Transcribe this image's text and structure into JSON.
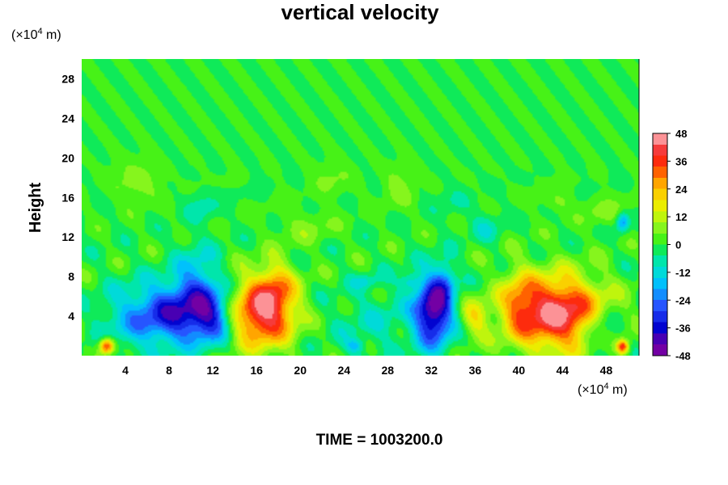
{
  "chart_data": {
    "type": "heatmap",
    "title": "vertical velocity",
    "ylabel": "Height",
    "xlabel": "",
    "x_unit": {
      "prefix": "(×10",
      "exp": "4",
      "suffix": " m)"
    },
    "y_unit": {
      "prefix": "(×10",
      "exp": "4",
      "suffix": " m)"
    },
    "xlim": [
      0,
      51
    ],
    "ylim": [
      0,
      30
    ],
    "xticks": [
      4,
      8,
      12,
      16,
      20,
      24,
      28,
      32,
      36,
      40,
      44,
      48
    ],
    "yticks": [
      4,
      8,
      12,
      16,
      20,
      24,
      28
    ],
    "colorbar": {
      "ticks": [
        48,
        36,
        24,
        12,
        0,
        -12,
        -24,
        -36,
        -48
      ],
      "range": [
        -48,
        48
      ],
      "levels": 20
    },
    "features": [
      {
        "x": 8.5,
        "y": 4.2,
        "sx": 2.6,
        "sy": 2.1,
        "amp": -34
      },
      {
        "x": 12.0,
        "y": 4.0,
        "sx": 1.3,
        "sy": 1.9,
        "amp": -24
      },
      {
        "x": 10.5,
        "y": 7.5,
        "sx": 1.4,
        "sy": 2.5,
        "amp": -16
      },
      {
        "x": 16.5,
        "y": 4.3,
        "sx": 2.1,
        "sy": 2.4,
        "amp": 44
      },
      {
        "x": 17.8,
        "y": 7.2,
        "sx": 1.2,
        "sy": 1.8,
        "amp": 16
      },
      {
        "x": 32.2,
        "y": 4.5,
        "sx": 1.2,
        "sy": 2.4,
        "amp": -46
      },
      {
        "x": 33.2,
        "y": 7.5,
        "sx": 0.7,
        "sy": 1.5,
        "amp": -14
      },
      {
        "x": 43.5,
        "y": 4.3,
        "sx": 3.0,
        "sy": 2.6,
        "amp": 46
      },
      {
        "x": 40.0,
        "y": 5.5,
        "sx": 1.1,
        "sy": 2.4,
        "amp": 14
      },
      {
        "x": 36.0,
        "y": 3.8,
        "sx": 0.9,
        "sy": 1.4,
        "amp": 16
      },
      {
        "x": 2.3,
        "y": 1.0,
        "sx": 0.5,
        "sy": 0.6,
        "amp": 40
      },
      {
        "x": 49.5,
        "y": 0.9,
        "sx": 0.4,
        "sy": 0.5,
        "amp": 38
      },
      {
        "x": 4.0,
        "y": 3.5,
        "sx": 2.0,
        "sy": 2.5,
        "amp": -9
      },
      {
        "x": 27.0,
        "y": 3.5,
        "sx": 3.0,
        "sy": 2.5,
        "amp": -7
      },
      {
        "x": 47.5,
        "y": 2.5,
        "sx": 1.2,
        "sy": 1.5,
        "amp": -16
      },
      {
        "x": 25.0,
        "y": 1.0,
        "sx": 0.6,
        "sy": 0.5,
        "amp": -14
      },
      {
        "x": 5.0,
        "y": 17.5,
        "sx": 1.5,
        "sy": 1.5,
        "amp": 8
      },
      {
        "x": 23.0,
        "y": 17.8,
        "sx": 1.2,
        "sy": 1.2,
        "amp": 6
      },
      {
        "x": 29.0,
        "y": 17.0,
        "sx": 1.0,
        "sy": 1.5,
        "amp": 7
      },
      {
        "x": 20.5,
        "y": 13.0,
        "sx": 2.0,
        "sy": 1.2,
        "amp": 6
      },
      {
        "x": 48.0,
        "y": 14.5,
        "sx": 1.5,
        "sy": 1.0,
        "amp": 7
      },
      {
        "x": 11.0,
        "y": 15.0,
        "sx": 1.0,
        "sy": 1.0,
        "amp": -8
      },
      {
        "x": 37.0,
        "y": 13.0,
        "sx": 1.0,
        "sy": 1.0,
        "amp": -8
      },
      {
        "x": 43.5,
        "y": 15.5,
        "sx": 1.0,
        "sy": 0.8,
        "amp": 6
      },
      {
        "x": 34.0,
        "y": 15.5,
        "sx": 1.2,
        "sy": 1.0,
        "amp": -5
      },
      {
        "x": 30.0,
        "y": 7.5,
        "sx": 0.6,
        "sy": 0.6,
        "amp": -12
      },
      {
        "x": 26.0,
        "y": 7.5,
        "sx": 0.8,
        "sy": 0.5,
        "amp": -9
      },
      {
        "x": 49.5,
        "y": 13.5,
        "sx": 0.4,
        "sy": 0.7,
        "amp": -22
      }
    ]
  },
  "footer": {
    "time_label": "TIME = 1003200.0"
  }
}
